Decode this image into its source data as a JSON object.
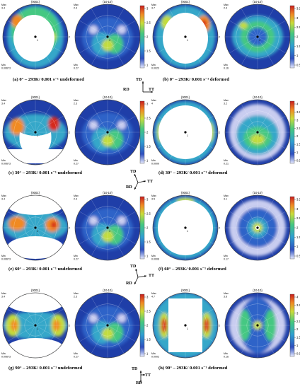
{
  "colors": {
    "outside": "#1f3ea8",
    "level_1": "#2e64c8",
    "level_2": "#35a7c9",
    "level_3": "#45c882",
    "level_4": "#c2dc3c",
    "level_5": "#f08a24",
    "level_6": "#d62b1e",
    "hole": "#ffffff",
    "pale": "#c9cdf0"
  },
  "captions": {
    "a": "(a) 0° – 293K/ 0.001 s⁻¹ undeformed",
    "b": "(b) 0° – 293K/ 0.001 s⁻¹ deformed",
    "c": "(c) 30° – 293K/ 0.001 s⁻¹ undeformed",
    "d": "(d) 30° – 293K/ 0.001 s⁻¹ deformed",
    "e": "(e) 60° – 293K/ 0.001 s⁻¹ undeformed",
    "f": "(f) 60° – 293K/ 0.001 s⁻¹ deformed",
    "g": "(g) 90° – 293K/ 0.001 s⁻¹ undeformed",
    "h": "(h) 90° – 293K/ 0.001 s⁻¹ deformed"
  },
  "axes": {
    "td": "TD",
    "rd": "RD",
    "tt": "TT"
  },
  "pole_labels": {
    "basal": "{0001}",
    "prism": "{10-10}"
  },
  "stat_labels": {
    "max": "Max",
    "min": "Min"
  },
  "rows": [
    {
      "pole_stats": [
        {
          "max": "3.4",
          "min": "0.00673"
        },
        {
          "max": "2.3",
          "min": "0.27"
        },
        {
          "max": "3.7",
          "min": "0.0023"
        },
        {
          "max": "2.3",
          "min": "0.16"
        }
      ],
      "bars": [
        {
          "ticks": [
            "3",
            "2.5",
            "2",
            "1.5",
            "1"
          ]
        },
        {
          "ticks": [
            "3.5",
            "3",
            "2.5",
            "2",
            "1.5",
            "1",
            "0.5"
          ]
        }
      ]
    },
    {
      "pole_stats": [
        {
          "max": "3.4",
          "min": "0.00673"
        },
        {
          "max": "2.3",
          "min": "0.27"
        },
        {
          "max": "4",
          "min": "0.0009"
        },
        {
          "max": "3.2",
          "min": "0.21"
        }
      ],
      "bars": [
        {
          "ticks": [
            "3",
            "2.5",
            "2",
            "1.5",
            "1"
          ]
        },
        {
          "ticks": [
            "4",
            "3.5",
            "3",
            "2.5",
            "2",
            "1.5",
            "1",
            "0.5"
          ]
        }
      ]
    },
    {
      "pole_stats": [
        {
          "max": "3.4",
          "min": "0.00673"
        },
        {
          "max": "2.3",
          "min": "0.27"
        },
        {
          "max": "3.5",
          "min": "0.0006"
        },
        {
          "max": "3.1",
          "min": "0.17"
        }
      ],
      "bars": [
        {
          "ticks": [
            "3",
            "2.5",
            "2",
            "1.5",
            "1"
          ]
        },
        {
          "ticks": [
            "3.5",
            "3",
            "2.5",
            "2",
            "1.5",
            "1",
            "0.5"
          ]
        }
      ]
    },
    {
      "pole_stats": [
        {
          "max": "3.4",
          "min": "0.00673"
        },
        {
          "max": "2.3",
          "min": "0.27"
        },
        {
          "max": "4.7",
          "min": "0.0002"
        },
        {
          "max": "3.6",
          "min": "0.16"
        }
      ],
      "bars": [
        {
          "ticks": [
            "3",
            "2.5",
            "2",
            "1.5",
            "1"
          ]
        },
        {
          "ticks": [
            "4",
            "3.5",
            "3",
            "2.5",
            "2",
            "1.5",
            "1",
            "0.5"
          ]
        }
      ]
    }
  ]
}
